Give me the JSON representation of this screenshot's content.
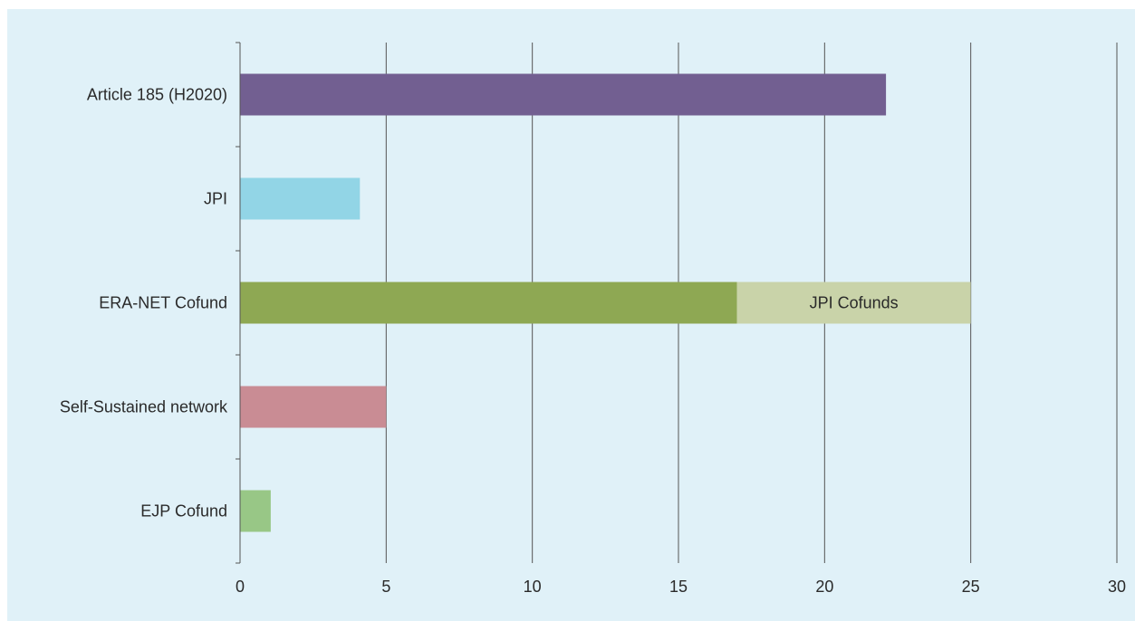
{
  "chart_data": {
    "type": "bar",
    "orientation": "horizontal",
    "stacked": true,
    "categories": [
      "Article 185 (H2020)",
      "JPI",
      "ERA-NET Cofund",
      "Self-Sustained network",
      "EJP Cofund"
    ],
    "bars": [
      {
        "category": "Article 185 (H2020)",
        "segments": [
          {
            "value": 22.1,
            "color": "#725f91",
            "label": ""
          }
        ]
      },
      {
        "category": "JPI",
        "segments": [
          {
            "value": 4.1,
            "color": "#92d5e6",
            "label": ""
          }
        ]
      },
      {
        "category": "ERA-NET Cofund",
        "segments": [
          {
            "value": 17,
            "color": "#8ea853",
            "label": ""
          },
          {
            "value": 8,
            "color": "#c9d3a9",
            "label": "JPI Cofunds"
          }
        ]
      },
      {
        "category": "Self-Sustained network",
        "segments": [
          {
            "value": 5,
            "color": "#c98c94",
            "label": ""
          }
        ]
      },
      {
        "category": "EJP Cofund",
        "segments": [
          {
            "value": 1.05,
            "color": "#98c786",
            "label": ""
          }
        ]
      }
    ],
    "xlim": [
      0,
      30
    ],
    "xticks": [
      0,
      5,
      10,
      15,
      20,
      25,
      30
    ],
    "grid": true,
    "title": "",
    "xlabel": "",
    "ylabel": "",
    "background": "#e0f1f8",
    "gridline_color": "#555555"
  }
}
